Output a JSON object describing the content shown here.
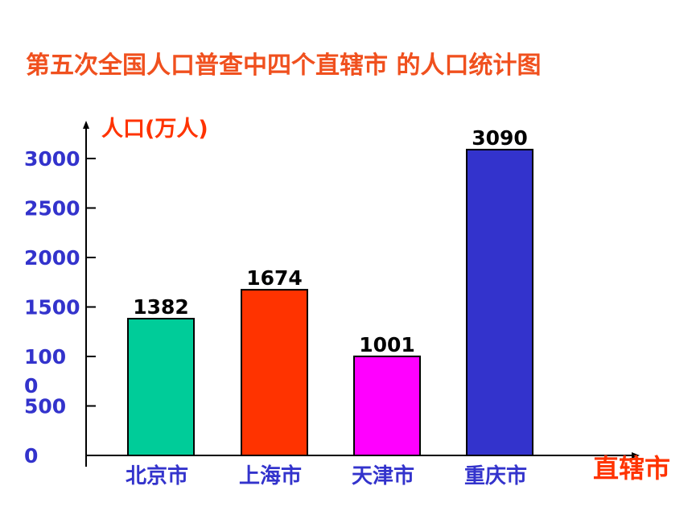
{
  "title": "第五次全国人口普查中四个直辖市 的人口统计图",
  "colors": {
    "title": "#f0501e",
    "axis_title": "#ff3300",
    "tick": "#3333cc",
    "category": "#3333cc",
    "axis": "#000000"
  },
  "chart_data": {
    "type": "bar",
    "title": "第五次全国人口普查中四个直辖市 的人口统计图",
    "ylabel": "人口(万人)",
    "xlabel": "直辖市",
    "categories": [
      "北京市",
      "上海市",
      "天津市",
      "重庆市"
    ],
    "values": [
      1382,
      1674,
      1001,
      3090
    ],
    "data_labels": [
      "1382",
      "1674",
      "1001",
      "3090"
    ],
    "bar_colors": [
      "#00cc99",
      "#ff3300",
      "#ff00ff",
      "#3333cc"
    ],
    "yticks": [
      0,
      500,
      1000,
      1500,
      2000,
      2500,
      3000
    ],
    "ytick_labels": [
      "0",
      "500",
      "100\n0",
      "1500",
      "2000",
      "2500",
      "3000"
    ],
    "ylim": [
      0,
      3300
    ],
    "grid": false,
    "legend": "none"
  }
}
